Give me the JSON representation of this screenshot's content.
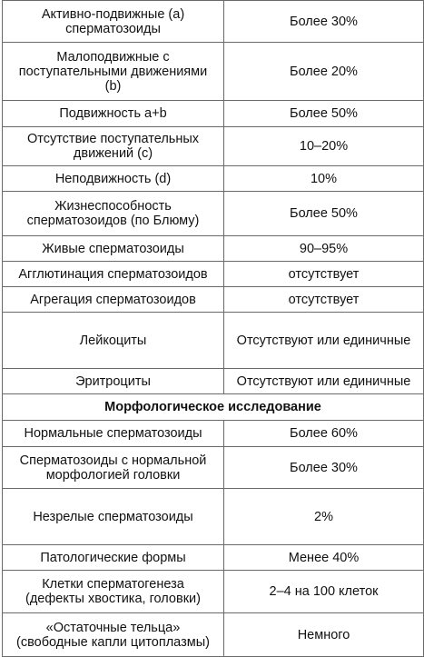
{
  "rows": [
    {
      "param": "Активно-подвижные (a)\nсперматозоиды",
      "value": "Более 30%",
      "h": 46
    },
    {
      "param": "Малоподвижные с\nпоступательными движениями\n(b)",
      "value": "Более 20%",
      "h": 64
    },
    {
      "param": "Подвижность a+b",
      "value": "Более 50%",
      "h": 29
    },
    {
      "param": "Отсутствие поступательных\nдвижений (c)",
      "value": "10–20%",
      "h": 43
    },
    {
      "param": "Неподвижность (d)",
      "value": "10%",
      "h": 28
    },
    {
      "param": "Жизнеспособность\nсперматозоидов (по Блюму)",
      "value": "Более 50%",
      "h": 49
    },
    {
      "param": "Живые сперматозоиды",
      "value": "90–95%",
      "h": 28
    },
    {
      "param": "Агглютинация сперматозоидов",
      "value": "отсутствует",
      "h": 28
    },
    {
      "param": "Агрегация сперматозоидов",
      "value": "отсутствует",
      "h": 28
    },
    {
      "param": "Лейкоциты",
      "value": "Отсутствуют или единичные",
      "h": 62
    },
    {
      "param": "Эритроциты",
      "value": "Отсутствуют или единичные",
      "h": 28
    },
    {
      "section": "Морфологическое исследование",
      "h": 29
    },
    {
      "param": "Нормальные сперматозоиды",
      "value": "Более 60%",
      "h": 29
    },
    {
      "param": "Сперматозоиды с нормальной\nморфологией головки",
      "value": "Более 30%",
      "h": 46
    },
    {
      "param": "Незрелые сперматозоиды",
      "value": "2%",
      "h": 62
    },
    {
      "param": "Патологические формы",
      "value": "Менее 40%",
      "h": 28
    },
    {
      "param": "Клетки сперматогенеза\n(дефекты хвостика, головки)",
      "value": "2–4 на 100 клеток",
      "h": 47
    },
    {
      "param": "«Остаточные тельца»\n(свободные капли цитоплазмы)",
      "value": "Немного",
      "h": 48
    }
  ]
}
